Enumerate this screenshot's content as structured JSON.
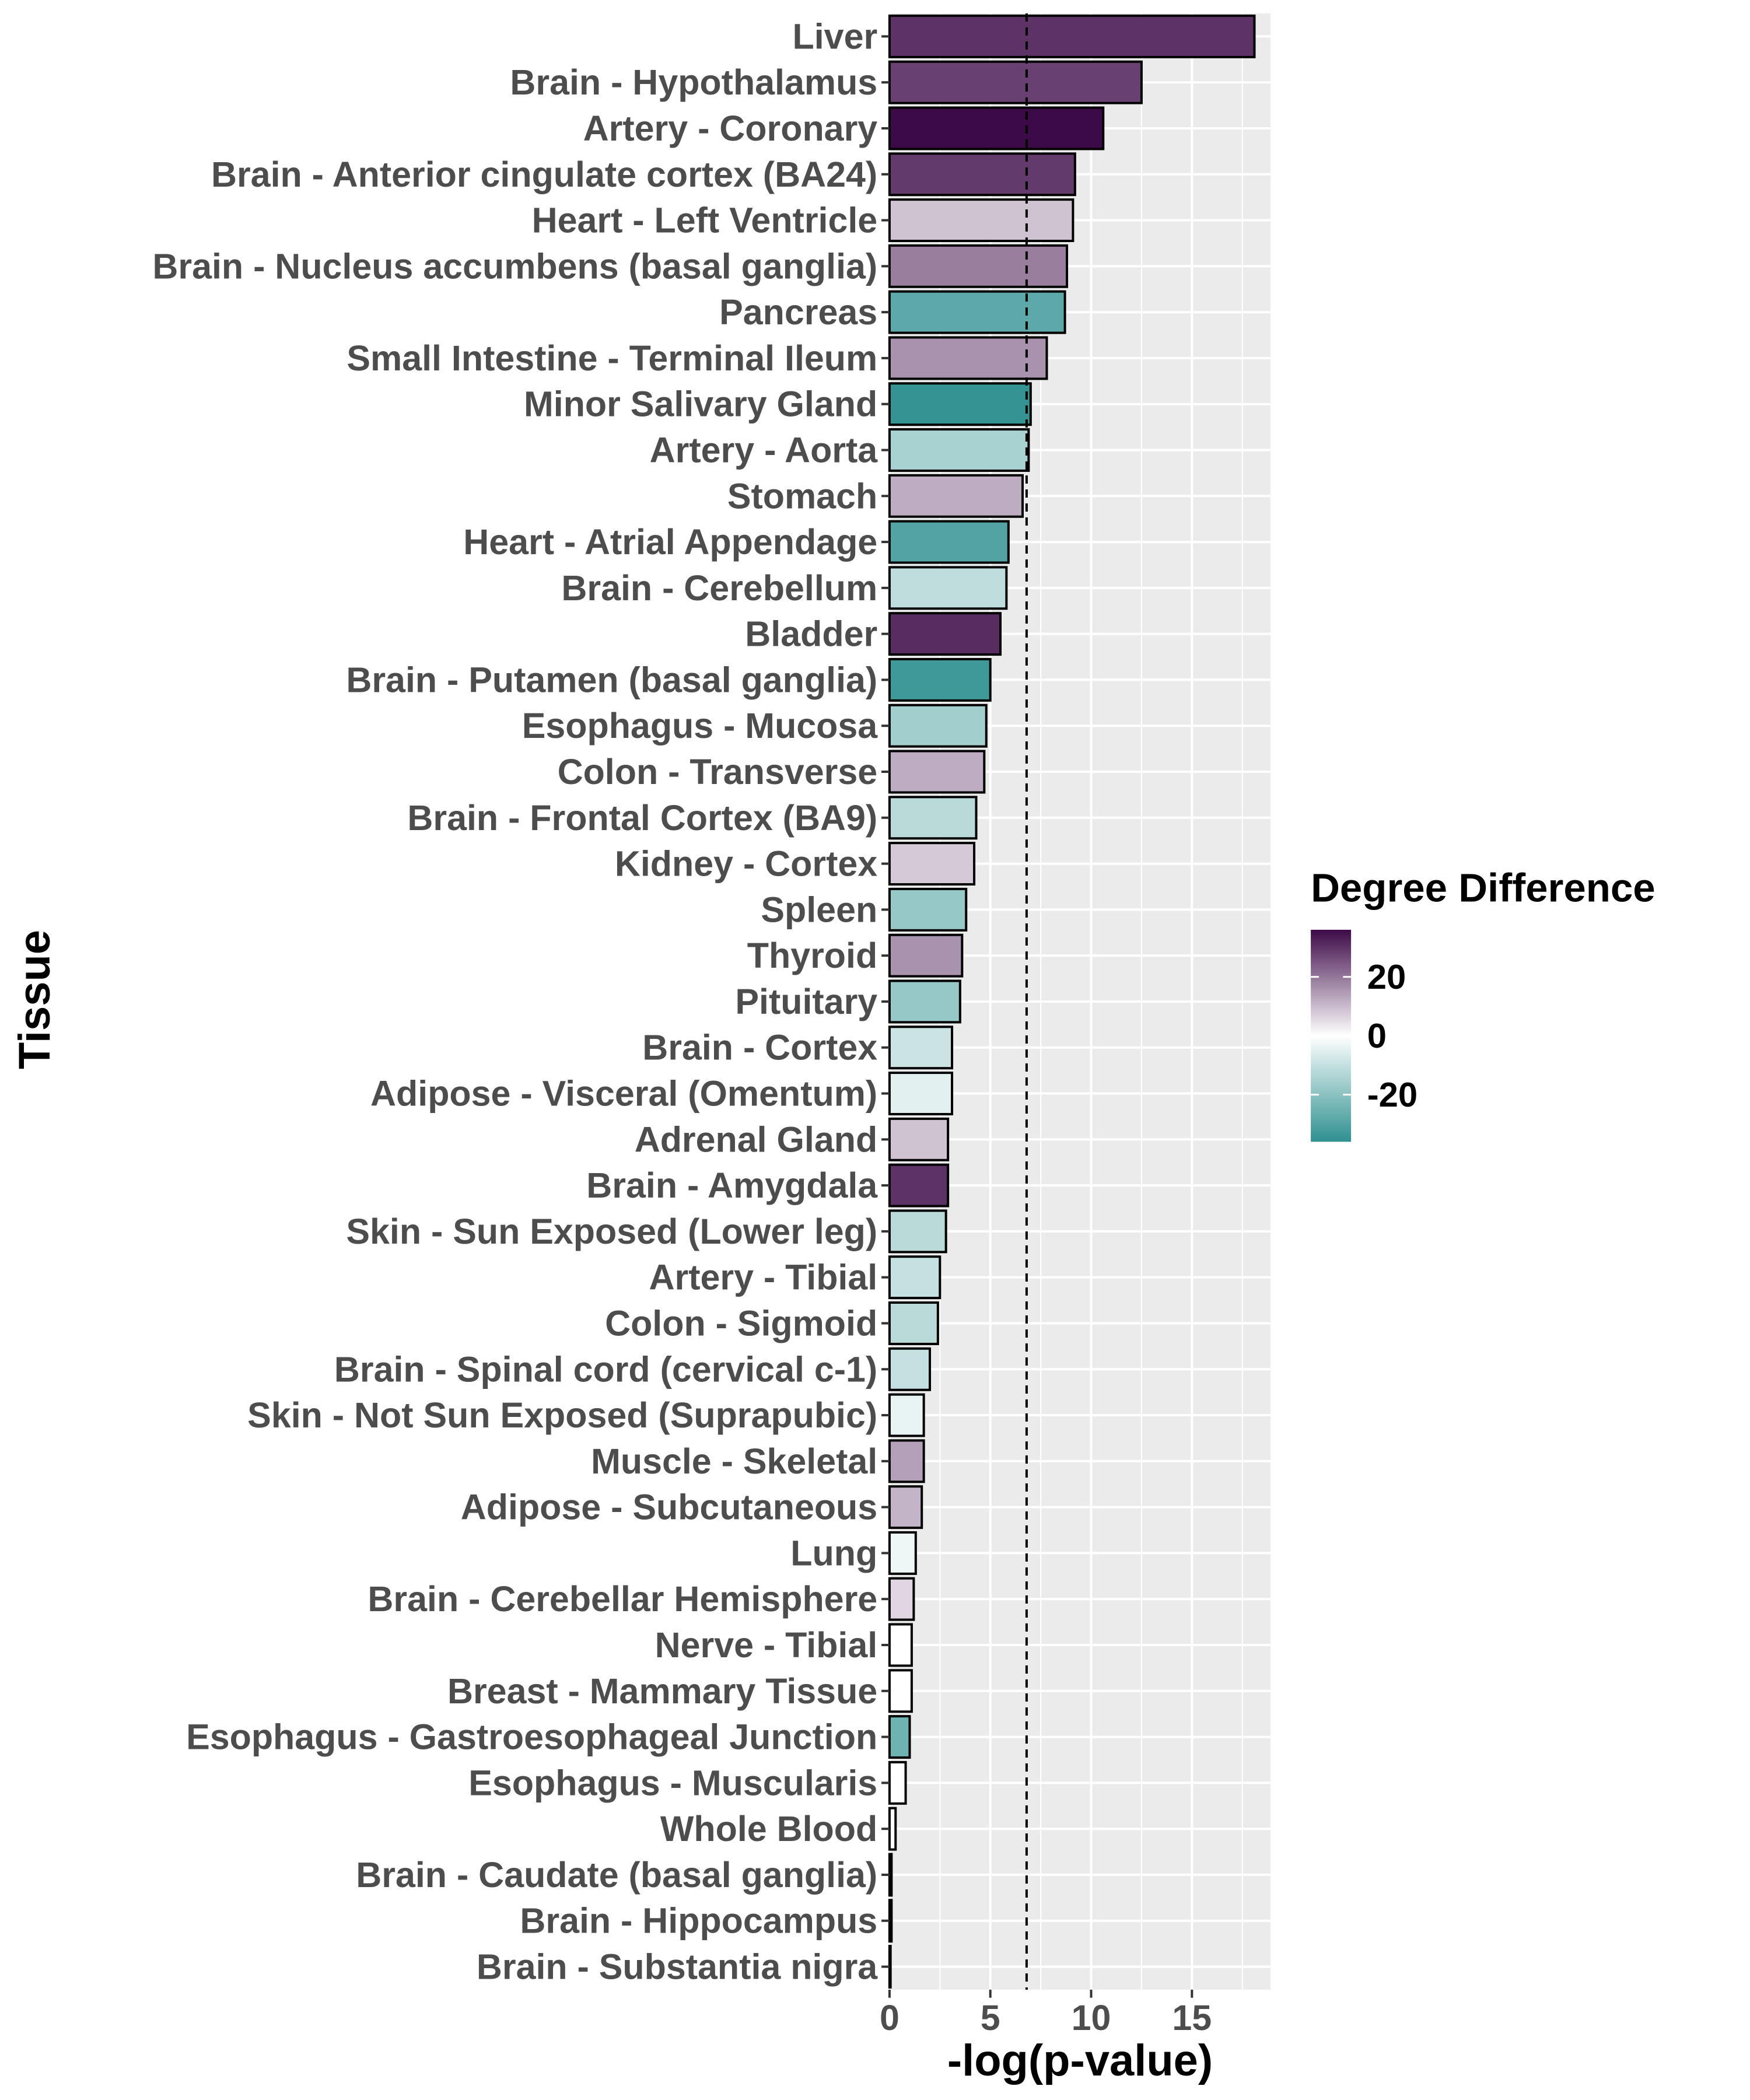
{
  "chart_data": {
    "type": "bar",
    "orientation": "horizontal",
    "xlabel": "-log(p-value)",
    "ylabel": "Tissue",
    "xlim": [
      0,
      18.9
    ],
    "xticks": [
      0,
      5,
      10,
      15
    ],
    "grid": true,
    "reference_line": {
      "x": 6.8,
      "style": "dashed"
    },
    "categories": [
      "Liver",
      "Brain - Hypothalamus",
      "Artery - Coronary",
      "Brain - Anterior cingulate cortex (BA24)",
      "Heart - Left Ventricle",
      "Brain - Nucleus accumbens (basal ganglia)",
      "Pancreas",
      "Small Intestine - Terminal Ileum",
      "Minor Salivary Gland",
      "Artery - Aorta",
      "Stomach",
      "Heart - Atrial Appendage",
      "Brain - Cerebellum",
      "Bladder",
      "Brain - Putamen (basal ganglia)",
      "Esophagus - Mucosa",
      "Colon - Transverse",
      "Brain - Frontal Cortex (BA9)",
      "Kidney - Cortex",
      "Spleen",
      "Thyroid",
      "Pituitary",
      "Brain - Cortex",
      "Adipose - Visceral (Omentum)",
      "Adrenal Gland",
      "Brain - Amygdala",
      "Skin - Sun Exposed (Lower leg)",
      "Artery - Tibial",
      "Colon - Sigmoid",
      "Brain - Spinal cord (cervical c-1)",
      "Skin - Not Sun Exposed (Suprapubic)",
      "Muscle - Skeletal",
      "Adipose - Subcutaneous",
      "Lung",
      "Brain - Cerebellar Hemisphere",
      "Nerve - Tibial",
      "Breast - Mammary Tissue",
      "Esophagus - Gastroesophageal Junction",
      "Esophagus - Muscularis",
      "Whole Blood",
      "Brain - Caudate (basal ganglia)",
      "Brain - Hippocampus",
      "Brain - Substantia nigra"
    ],
    "values": [
      18.1,
      12.5,
      10.6,
      9.2,
      9.1,
      8.8,
      8.7,
      7.8,
      7.0,
      6.9,
      6.6,
      5.9,
      5.8,
      5.5,
      5.0,
      4.8,
      4.7,
      4.3,
      4.2,
      3.8,
      3.6,
      3.5,
      3.1,
      3.1,
      2.9,
      2.9,
      2.8,
      2.5,
      2.4,
      2.0,
      1.7,
      1.7,
      1.6,
      1.3,
      1.2,
      1.1,
      1.1,
      1.0,
      0.8,
      0.3,
      0.1,
      0.1,
      0.05
    ],
    "degree_difference": [
      30,
      28,
      36,
      29,
      9,
      19,
      -28,
      16,
      -35,
      -15,
      12,
      -30,
      -11,
      31,
      -33,
      -16,
      12,
      -12,
      8,
      -18,
      16,
      -18,
      -9,
      -5,
      9,
      30,
      -12,
      -10,
      -12,
      -10,
      -4,
      14,
      11,
      -3,
      6,
      0,
      0,
      -25,
      0,
      0,
      0,
      0,
      0
    ],
    "colorbar": {
      "title": "Degree Difference",
      "ticks": [
        20,
        0,
        -20
      ],
      "range": [
        -36,
        36
      ],
      "colors": {
        "high": "#3d0a48",
        "mid": "#ffffff",
        "low": "#2f9090"
      }
    },
    "colors": {
      "panel": "#ebebeb",
      "gridline": "#ffffff",
      "bar_outline": "#000000",
      "tick_text": "#4d4d4d"
    }
  }
}
